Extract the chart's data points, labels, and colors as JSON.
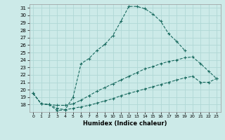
{
  "xlabel": "Humidex (Indice chaleur)",
  "bg_color": "#cceae8",
  "grid_color": "#b0d8d5",
  "line_color": "#1a6b60",
  "xlim": [
    -0.5,
    23.5
  ],
  "ylim": [
    17,
    31.5
  ],
  "yticks": [
    18,
    19,
    20,
    21,
    22,
    23,
    24,
    25,
    26,
    27,
    28,
    29,
    30,
    31
  ],
  "xticks": [
    0,
    1,
    2,
    3,
    4,
    5,
    6,
    7,
    8,
    9,
    10,
    11,
    12,
    13,
    14,
    15,
    16,
    17,
    18,
    19,
    20,
    21,
    22,
    23
  ],
  "line1_x": [
    0,
    1,
    2,
    3,
    4,
    5,
    6,
    7,
    8,
    9,
    10,
    11,
    12,
    13,
    14,
    15,
    16,
    17,
    18,
    19
  ],
  "line1_y": [
    19.5,
    18.1,
    18.0,
    17.2,
    17.3,
    19.0,
    23.5,
    24.2,
    25.3,
    26.1,
    27.3,
    29.2,
    31.2,
    31.2,
    30.9,
    30.2,
    29.2,
    27.5,
    26.5,
    25.3
  ],
  "line2_x": [
    0,
    1,
    2,
    3,
    4,
    5,
    6,
    7,
    8,
    9,
    10,
    11,
    12,
    13,
    14,
    15,
    16,
    17,
    18,
    19,
    20,
    21,
    22,
    23
  ],
  "line2_y": [
    19.5,
    18.1,
    18.0,
    17.9,
    17.9,
    18.1,
    18.6,
    19.2,
    19.8,
    20.3,
    20.8,
    21.3,
    21.8,
    22.3,
    22.8,
    23.1,
    23.5,
    23.8,
    24.0,
    24.3,
    24.4,
    23.5,
    22.5,
    21.5
  ],
  "line3_x": [
    0,
    1,
    2,
    3,
    4,
    5,
    6,
    7,
    8,
    9,
    10,
    11,
    12,
    13,
    14,
    15,
    16,
    17,
    18,
    19,
    20,
    21,
    22,
    23
  ],
  "line3_y": [
    19.5,
    18.1,
    18.0,
    17.5,
    17.3,
    17.5,
    17.7,
    17.9,
    18.2,
    18.5,
    18.8,
    19.2,
    19.5,
    19.8,
    20.1,
    20.4,
    20.7,
    21.0,
    21.3,
    21.6,
    21.8,
    21.0,
    21.0,
    21.5
  ]
}
